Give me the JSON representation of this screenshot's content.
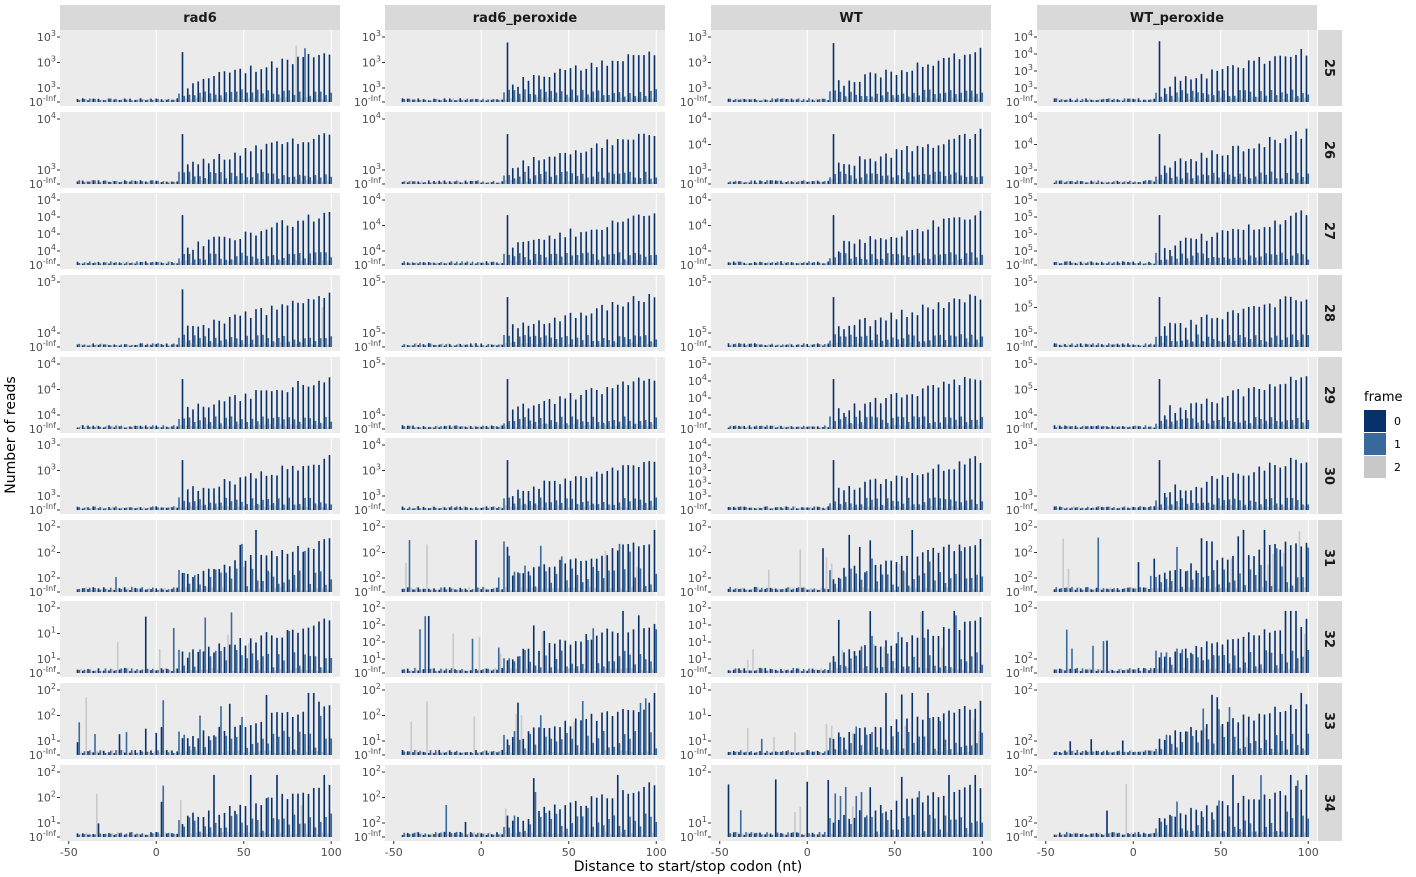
{
  "chart_data": {
    "type": "bar",
    "facet_columns": [
      "rad6",
      "rad6_peroxide",
      "WT",
      "WT_peroxide"
    ],
    "facet_rows": [
      "25",
      "26",
      "27",
      "28",
      "29",
      "30",
      "31",
      "32",
      "33",
      "34"
    ],
    "xlabel": "Distance to start/stop codon (nt)",
    "ylabel": "Number of reads",
    "xlim": [
      -55,
      105
    ],
    "x_ticks": [
      -50,
      0,
      50,
      100
    ],
    "x": [
      -45,
      100
    ],
    "y_scale": "log",
    "legend": {
      "title": "frame",
      "position": "right",
      "entries": [
        {
          "label": "0",
          "color": "#08306B"
        },
        {
          "label": "1",
          "color": "#3A6A9C"
        },
        {
          "label": "2",
          "color": "#C8C8C8"
        }
      ]
    },
    "y_tick_labels": [
      [
        "10^3",
        "10^3",
        "10^3",
        "10^-Inf"
      ],
      [
        "10^3",
        "10^3",
        "10^3",
        "10^-Inf"
      ],
      [
        "10^3",
        "10^3",
        "10^3",
        "10^-Inf"
      ],
      [
        "10^4",
        "10^4",
        "10^3",
        "10^3",
        "10^-Inf"
      ],
      [
        "10^4",
        "10^3",
        "10^-Inf"
      ],
      [
        "10^4",
        "10^3",
        "10^-Inf"
      ],
      [
        "10^4",
        "10^4",
        "10^3",
        "10^-Inf"
      ],
      [
        "10^4",
        "10^4",
        "10^3",
        "10^-Inf"
      ],
      [
        "10^4",
        "10^4",
        "10^4",
        "10^4",
        "10^-Inf"
      ],
      [
        "10^4",
        "10^4",
        "10^4",
        "10^-Inf"
      ],
      [
        "10^4",
        "10^4",
        "10^4",
        "10^-Inf"
      ],
      [
        "10^5",
        "10^5",
        "10^5",
        "10^5",
        "10^-Inf"
      ],
      [
        "10^5",
        "10^4",
        "10^-Inf"
      ],
      [
        "10^5",
        "10^5",
        "10^-Inf"
      ],
      [
        "10^5",
        "10^5",
        "10^-Inf"
      ],
      [
        "10^5",
        "10^5",
        "10^5",
        "10^-Inf"
      ],
      [
        "10^4",
        "10^4",
        "10^4",
        "10^-Inf"
      ],
      [
        "10^5",
        "10^4",
        "10^-Inf"
      ],
      [
        "10^5",
        "10^4",
        "10^4",
        "10^4",
        "10^-Inf"
      ],
      [
        "10^5",
        "10^5",
        "10^4",
        "10^-Inf"
      ],
      [
        "10^3",
        "10^3",
        "10^3",
        "10^-Inf"
      ],
      [
        "10^4",
        "10^3",
        "10^3",
        "10^-Inf"
      ],
      [
        "10^4",
        "10^4",
        "10^3",
        "10^3",
        "10^3",
        "10^-Inf"
      ],
      [
        "10^3",
        "10^3",
        "10^-Inf"
      ],
      [
        "10^2",
        "10^2",
        "10^2",
        "10^-Inf"
      ],
      [
        "10^2",
        "10^2",
        "10^2",
        "10^-Inf"
      ],
      [
        "10^2",
        "10^2",
        "10^2",
        "10^-Inf"
      ],
      [
        "10^2",
        "10^2",
        "10^2",
        "10^-Inf"
      ],
      [
        "10^2",
        "10^1",
        "10^1",
        "10^-Inf"
      ],
      [
        "10^2",
        "10^2",
        "10^2",
        "10^1",
        "10^-Inf"
      ],
      [
        "10^2",
        "10^1",
        "10^1",
        "10^1",
        "10^-Inf"
      ],
      [
        "10^2",
        "10^2",
        "10^-Inf"
      ],
      [
        "10^2",
        "10^2",
        "10^1",
        "10^-Inf"
      ],
      [
        "10^2",
        "10^2",
        "10^1",
        "10^-Inf"
      ],
      [
        "10^1",
        "10^1",
        "10^1",
        "10^-Inf"
      ],
      [
        "10^2",
        "10^2",
        "10^-Inf"
      ],
      [
        "10^2",
        "10^2",
        "10^1",
        "10^-Inf"
      ],
      [
        "10^2",
        "10^2",
        "10^2",
        "10^-Inf"
      ],
      [
        "10^2",
        "10^1",
        "10^-Inf"
      ],
      [
        "10^2",
        "10^2",
        "10^-Inf"
      ]
    ],
    "series": [
      {
        "facet": "rad6 / 25",
        "peaks": [
          [
            15,
            0.65
          ],
          [
            80,
            0.88
          ],
          [
            85,
            0.84
          ]
        ]
      },
      {
        "facet": "rad6 / 28",
        "peaks": [
          [
            15,
            0.9
          ],
          [
            95,
            0.62
          ]
        ]
      },
      {
        "facet": "rad6 / 33",
        "peaks": [
          [
            -40,
            0.9
          ],
          [
            -45,
            0.2
          ]
        ]
      },
      {
        "facet": "rad6_peroxide / 25",
        "peaks": [
          [
            15,
            0.93
          ]
        ]
      },
      {
        "facet": "rad6_peroxide / 34",
        "peaks": [
          [
            30,
            0.92
          ],
          [
            -20,
            0.5
          ]
        ]
      },
      {
        "facet": "WT / 25",
        "peaks": [
          [
            15,
            0.92
          ]
        ]
      },
      {
        "facet": "WT / 32",
        "peaks": [
          [
            65,
            0.95
          ],
          [
            85,
            0.9
          ]
        ]
      },
      {
        "facet": "WT_peroxide / 25",
        "peaks": [
          [
            15,
            0.95
          ]
        ]
      },
      {
        "facet": "WT_peroxide / 31",
        "peaks": [
          [
            -20,
            0.85
          ],
          [
            95,
            0.95
          ]
        ]
      }
    ]
  }
}
